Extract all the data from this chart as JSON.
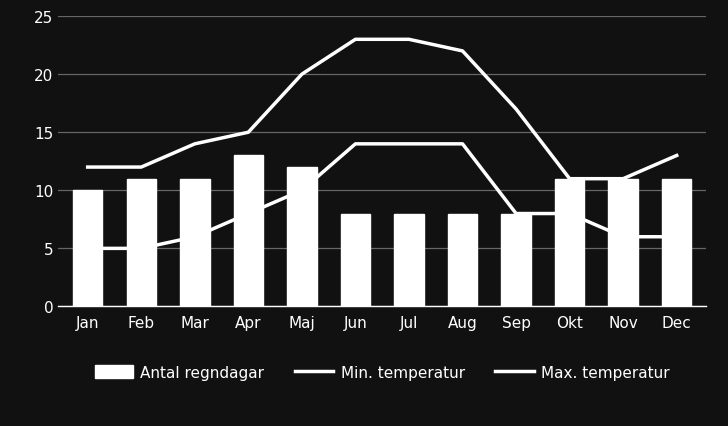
{
  "months": [
    "Jan",
    "Feb",
    "Mar",
    "Apr",
    "Maj",
    "Jun",
    "Jul",
    "Aug",
    "Sep",
    "Okt",
    "Nov",
    "Dec"
  ],
  "rain_days": [
    10,
    11,
    11,
    13,
    12,
    8,
    8,
    8,
    8,
    11,
    11,
    11
  ],
  "min_temp": [
    5,
    5,
    6,
    8,
    10,
    14,
    14,
    14,
    8,
    8,
    6,
    6
  ],
  "max_temp": [
    12,
    12,
    14,
    15,
    20,
    23,
    23,
    22,
    17,
    11,
    11,
    13
  ],
  "background_color": "#111111",
  "bar_color": "#ffffff",
  "line_color": "#ffffff",
  "text_color": "#ffffff",
  "grid_color": "#666666",
  "ylim": [
    0,
    25
  ],
  "yticks": [
    0,
    5,
    10,
    15,
    20,
    25
  ],
  "legend_labels": [
    "Antal regndagar",
    "Min. temperatur",
    "Max. temperatur"
  ],
  "bar_width": 0.55
}
